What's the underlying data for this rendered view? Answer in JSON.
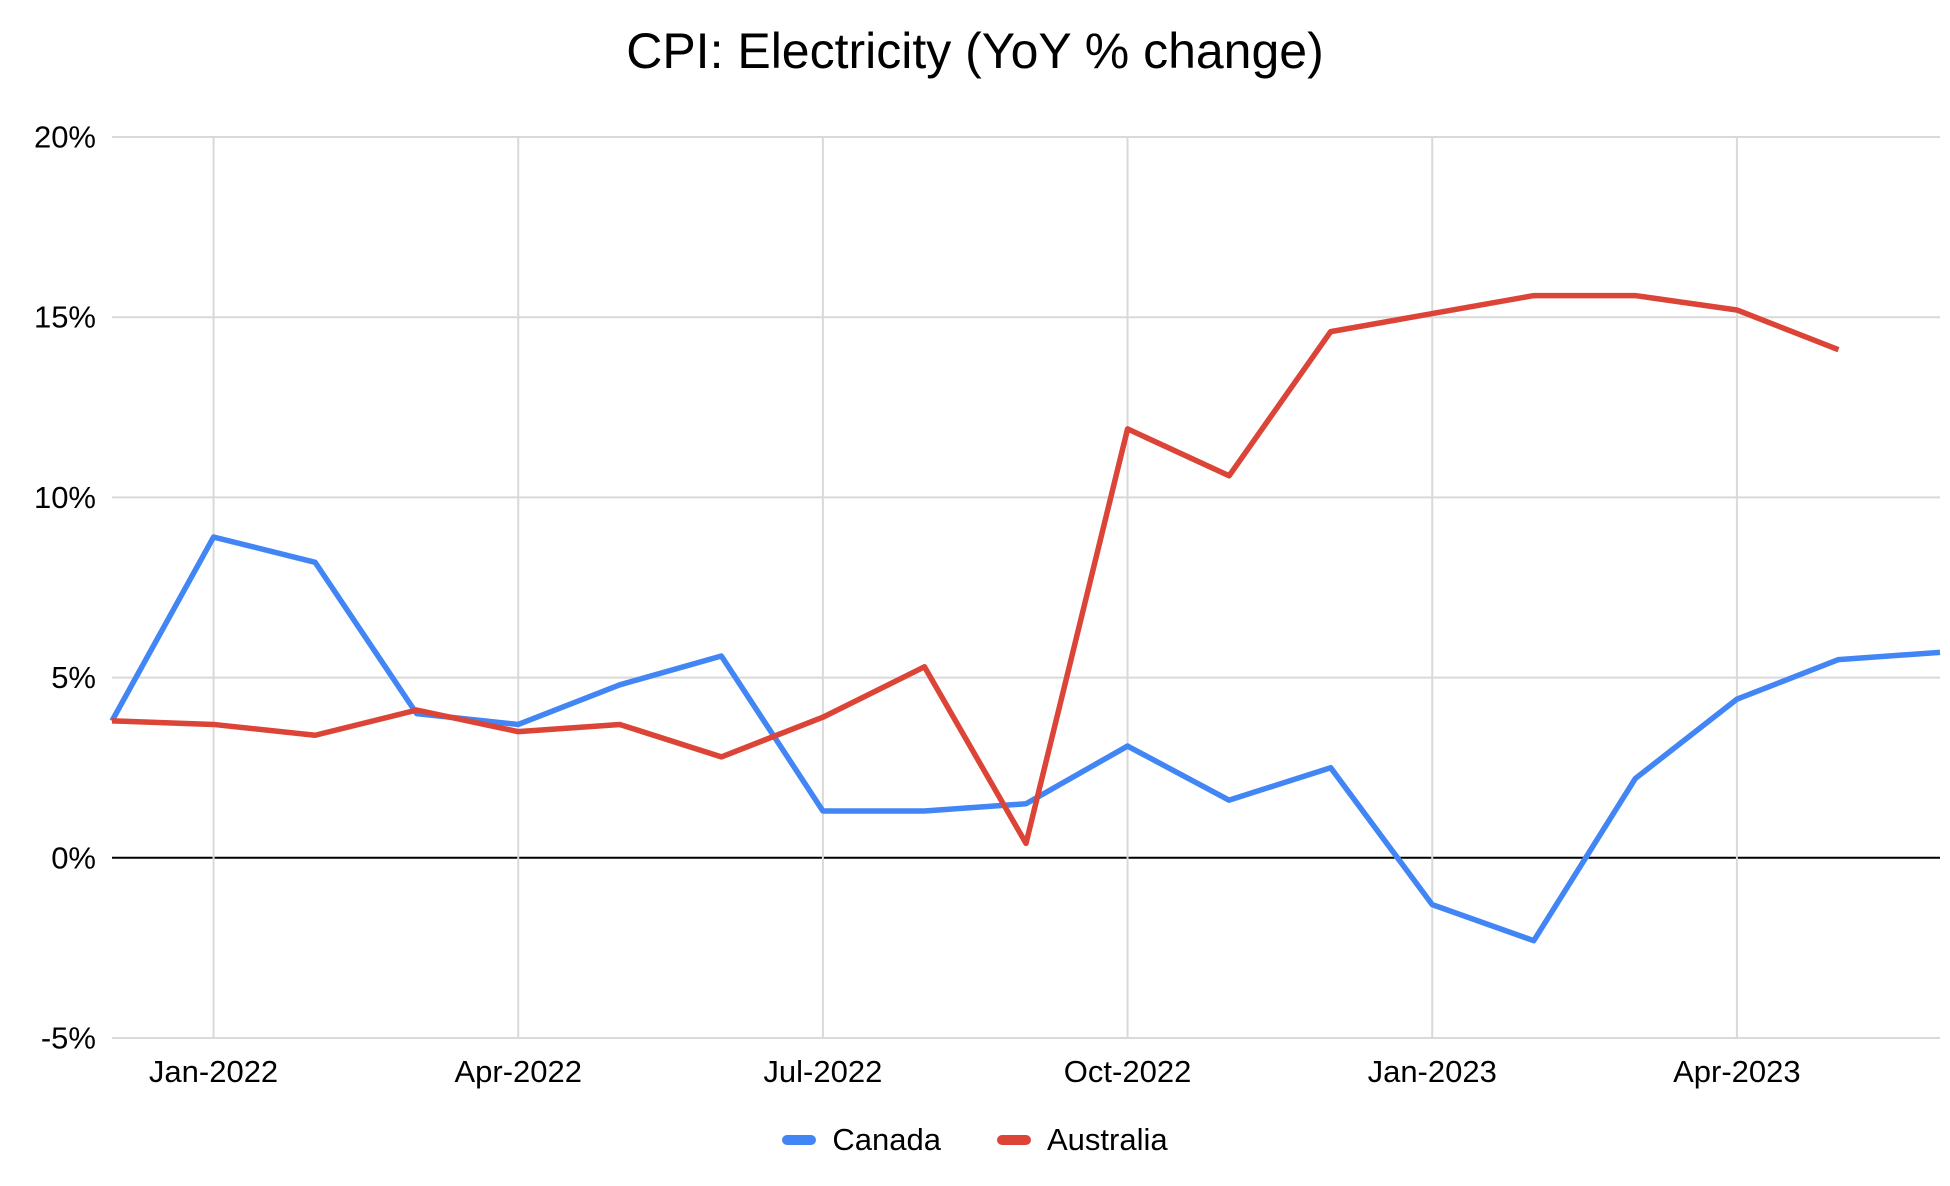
{
  "chart_data": {
    "type": "line",
    "title": "CPI: Electricity (YoY % change)",
    "x": [
      "Dec-2021",
      "Jan-2022",
      "Feb-2022",
      "Mar-2022",
      "Apr-2022",
      "May-2022",
      "Jun-2022",
      "Jul-2022",
      "Aug-2022",
      "Sep-2022",
      "Oct-2022",
      "Nov-2022",
      "Dec-2022",
      "Jan-2023",
      "Feb-2023",
      "Mar-2023",
      "Apr-2023",
      "May-2023",
      "Jun-2023"
    ],
    "x_tick_labels": [
      "Jan-2022",
      "Apr-2022",
      "Jul-2022",
      "Oct-2022",
      "Jan-2023",
      "Apr-2023"
    ],
    "y_ticks": [
      20,
      15,
      10,
      5,
      0,
      -5
    ],
    "y_tick_suffix": "%",
    "ylim": [
      -5,
      20
    ],
    "grid": true,
    "legend_position": "bottom",
    "colors": {
      "grid": "#d9d9d9",
      "zero_line": "#000000",
      "text": "#000000",
      "background": "#ffffff"
    },
    "series": [
      {
        "name": "Canada",
        "color": "#4285F4",
        "values": [
          3.8,
          8.9,
          8.2,
          4.0,
          3.7,
          4.8,
          5.6,
          1.3,
          1.3,
          1.5,
          3.1,
          1.6,
          2.5,
          -1.3,
          -2.3,
          2.2,
          4.4,
          5.5,
          5.7
        ]
      },
      {
        "name": "Australia",
        "color": "#DB4437",
        "values": [
          3.8,
          3.7,
          3.4,
          4.1,
          3.5,
          3.7,
          2.8,
          3.9,
          5.3,
          0.4,
          11.9,
          10.6,
          14.6,
          15.1,
          15.6,
          15.6,
          15.2,
          14.1,
          null
        ]
      }
    ]
  }
}
